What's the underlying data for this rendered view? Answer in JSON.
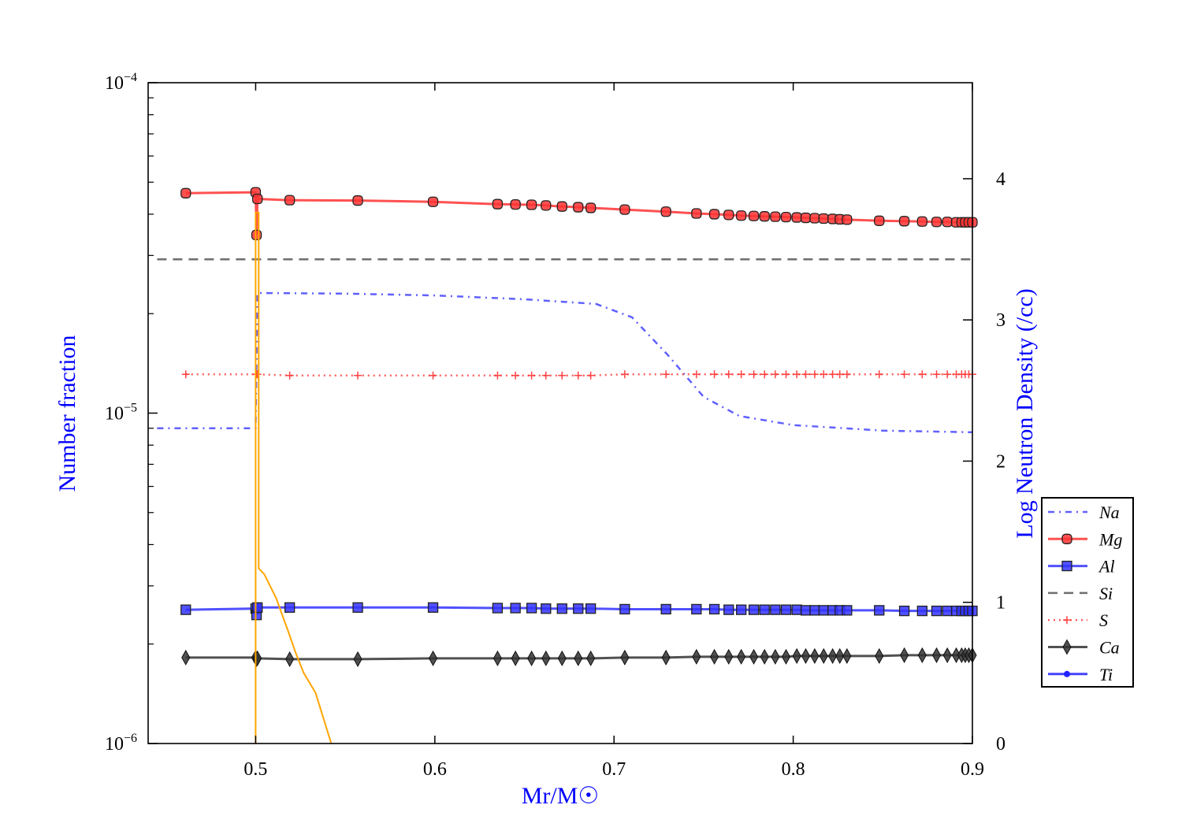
{
  "chart_data": {
    "type": "line",
    "title": "",
    "xlabel": "Mr/M☉",
    "ylabel": "Number fraction",
    "y2label": "Log Neutron Density (/cc)",
    "xlim": [
      0.44,
      0.9
    ],
    "ylim": [
      1e-06,
      0.0001
    ],
    "yscale": "log",
    "y2lim": [
      0,
      4.68
    ],
    "grid": false,
    "legend_position": "right",
    "x_ticks": [
      "0.5",
      "0.6",
      "0.7",
      "0.8",
      "0.9"
    ],
    "x_tick_values": [
      0.5,
      0.6,
      0.7,
      0.8,
      0.9
    ],
    "y_ticks": [
      {
        "base": "10",
        "exp": "−4",
        "value": 0.0001
      },
      {
        "base": "10",
        "exp": "−5",
        "value": 1e-05
      },
      {
        "base": "10",
        "exp": "−6",
        "value": 1e-06
      }
    ],
    "y2_ticks": [
      "0",
      "1",
      "2",
      "3",
      "4"
    ],
    "marker_x": [
      0.461,
      0.5,
      0.5005,
      0.501,
      0.519,
      0.557,
      0.599,
      0.635,
      0.645,
      0.654,
      0.662,
      0.671,
      0.68,
      0.687,
      0.706,
      0.729,
      0.746,
      0.756,
      0.764,
      0.771,
      0.778,
      0.784,
      0.79,
      0.796,
      0.802,
      0.807,
      0.812,
      0.817,
      0.822,
      0.826,
      0.83,
      0.848,
      0.862,
      0.872,
      0.88,
      0.886,
      0.891,
      0.894,
      0.896,
      0.898,
      0.9
    ],
    "series": [
      {
        "name": "Na",
        "color": "#4444ff",
        "style": "dashdot",
        "marker": "none",
        "x": [
          0.445,
          0.5,
          0.501,
          0.55,
          0.6,
          0.65,
          0.69,
          0.71,
          0.73,
          0.75,
          0.77,
          0.8,
          0.85,
          0.9
        ],
        "values": [
          9e-06,
          9e-06,
          2.31e-05,
          2.3e-05,
          2.27e-05,
          2.21e-05,
          2.14e-05,
          1.95e-05,
          1.5e-05,
          1.12e-05,
          9.8e-06,
          9.2e-06,
          8.85e-06,
          8.75e-06
        ]
      },
      {
        "name": "Mg",
        "color": "#ff3333",
        "style": "solid",
        "marker": "circle",
        "values": [
          4.63e-05,
          4.66e-05,
          3.46e-05,
          4.45e-05,
          4.41e-05,
          4.4e-05,
          4.36e-05,
          4.29e-05,
          4.28e-05,
          4.27e-05,
          4.25e-05,
          4.22e-05,
          4.2e-05,
          4.18e-05,
          4.13e-05,
          4.07e-05,
          4.02e-05,
          4e-05,
          3.98e-05,
          3.96e-05,
          3.95e-05,
          3.94e-05,
          3.93e-05,
          3.92e-05,
          3.91e-05,
          3.9e-05,
          3.89e-05,
          3.88e-05,
          3.87e-05,
          3.86e-05,
          3.85e-05,
          3.82e-05,
          3.81e-05,
          3.8e-05,
          3.79e-05,
          3.79e-05,
          3.78e-05,
          3.78e-05,
          3.78e-05,
          3.78e-05,
          3.78e-05
        ]
      },
      {
        "name": "Al",
        "color": "#3333ff",
        "style": "solid",
        "marker": "square",
        "values": [
          2.54e-06,
          2.56e-06,
          2.45e-06,
          2.58e-06,
          2.58e-06,
          2.58e-06,
          2.58e-06,
          2.57e-06,
          2.57e-06,
          2.57e-06,
          2.56e-06,
          2.56e-06,
          2.56e-06,
          2.56e-06,
          2.55e-06,
          2.55e-06,
          2.55e-06,
          2.55e-06,
          2.54e-06,
          2.54e-06,
          2.54e-06,
          2.54e-06,
          2.54e-06,
          2.54e-06,
          2.54e-06,
          2.53e-06,
          2.53e-06,
          2.53e-06,
          2.53e-06,
          2.53e-06,
          2.53e-06,
          2.53e-06,
          2.52e-06,
          2.52e-06,
          2.52e-06,
          2.52e-06,
          2.52e-06,
          2.52e-06,
          2.52e-06,
          2.52e-06,
          2.52e-06
        ]
      },
      {
        "name": "Si",
        "color": "#555555",
        "style": "dashed",
        "marker": "none",
        "x": [
          0.445,
          0.9
        ],
        "values": [
          2.92e-05,
          2.92e-05
        ]
      },
      {
        "name": "S",
        "color": "#ff4444",
        "style": "dotted",
        "marker": "plus",
        "values": [
          1.31e-05,
          1.31e-05,
          1.31e-05,
          1.31e-05,
          1.3e-05,
          1.3e-05,
          1.3e-05,
          1.3e-05,
          1.3e-05,
          1.3e-05,
          1.3e-05,
          1.3e-05,
          1.3e-05,
          1.3e-05,
          1.31e-05,
          1.31e-05,
          1.31e-05,
          1.31e-05,
          1.31e-05,
          1.31e-05,
          1.31e-05,
          1.31e-05,
          1.31e-05,
          1.31e-05,
          1.31e-05,
          1.31e-05,
          1.31e-05,
          1.31e-05,
          1.31e-05,
          1.31e-05,
          1.31e-05,
          1.31e-05,
          1.31e-05,
          1.31e-05,
          1.31e-05,
          1.31e-05,
          1.31e-05,
          1.31e-05,
          1.31e-05,
          1.31e-05,
          1.31e-05
        ]
      },
      {
        "name": "Ca",
        "color": "#333333",
        "style": "solid",
        "marker": "diamond",
        "values": [
          1.82e-06,
          1.82e-06,
          1.8e-06,
          1.81e-06,
          1.8e-06,
          1.8e-06,
          1.81e-06,
          1.81e-06,
          1.81e-06,
          1.81e-06,
          1.81e-06,
          1.81e-06,
          1.81e-06,
          1.81e-06,
          1.82e-06,
          1.82e-06,
          1.83e-06,
          1.83e-06,
          1.83e-06,
          1.83e-06,
          1.83e-06,
          1.83e-06,
          1.83e-06,
          1.83e-06,
          1.84e-06,
          1.84e-06,
          1.84e-06,
          1.84e-06,
          1.84e-06,
          1.84e-06,
          1.84e-06,
          1.84e-06,
          1.85e-06,
          1.85e-06,
          1.85e-06,
          1.85e-06,
          1.85e-06,
          1.85e-06,
          1.85e-06,
          1.85e-06,
          1.85e-06
        ]
      },
      {
        "name": "Ti",
        "color": "#2222ff",
        "style": "solid",
        "marker": "dot",
        "values": []
      }
    ],
    "neutron_density": {
      "name": "Log Neutron Density",
      "color": "#ffa500",
      "axis": "right",
      "x": [
        0.5,
        0.5,
        0.5017,
        0.5017,
        0.5048,
        0.5114,
        0.518,
        0.5224,
        0.5268,
        0.5334,
        0.5422
      ],
      "values": [
        0,
        3.76,
        3.76,
        1.24,
        1.2,
        1.03,
        0.8,
        0.64,
        0.5,
        0.36,
        0
      ]
    }
  }
}
